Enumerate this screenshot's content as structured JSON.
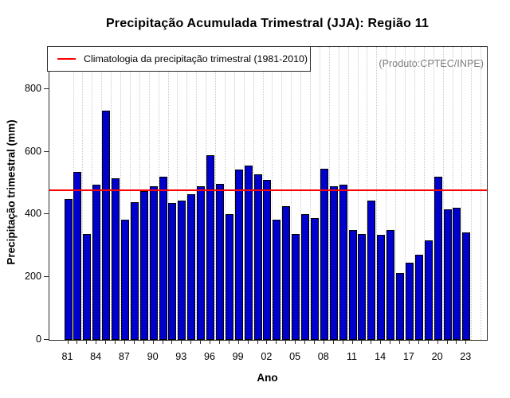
{
  "title": "Precipitação Acumulada Trimestral (JJA): Região 11",
  "annotation": "(Produto:CPTEC/INPE)",
  "legend": {
    "label": "Climatologia da precipitação trimestral (1981-2010)"
  },
  "xlabel": "Ano",
  "ylabel": "Precipitação trimestral (mm)",
  "chart_data": {
    "type": "bar",
    "x": [
      1981,
      1982,
      1983,
      1984,
      1985,
      1986,
      1987,
      1988,
      1989,
      1990,
      1991,
      1992,
      1993,
      1994,
      1995,
      1996,
      1997,
      1998,
      1999,
      2000,
      2001,
      2002,
      2003,
      2004,
      2005,
      2006,
      2007,
      2008,
      2009,
      2010,
      2011,
      2012,
      2013,
      2014,
      2015,
      2016,
      2017,
      2018,
      2019,
      2020,
      2021,
      2022,
      2023
    ],
    "values": [
      450,
      536,
      337,
      496,
      730,
      515,
      382,
      440,
      475,
      490,
      521,
      437,
      445,
      464,
      489,
      589,
      497,
      401,
      544,
      555,
      528,
      511,
      384,
      426,
      337,
      402,
      388,
      546,
      490,
      496,
      350,
      337,
      445,
      335,
      349,
      213,
      245,
      271,
      317,
      519,
      415,
      421,
      343
    ],
    "series_name": "Precipitação trimestral (mm)",
    "climatology_value": 477,
    "climatology_period": "1981-2010",
    "title": "Precipitação Acumulada Trimestral (JJA): Região 11",
    "xlabel": "Ano",
    "ylabel": "Precipitação trimestral (mm)",
    "yticks": [
      0,
      200,
      400,
      600,
      800
    ],
    "ylim": [
      0,
      935
    ],
    "xtick_labels": [
      "81",
      "84",
      "87",
      "90",
      "93",
      "96",
      "99",
      "02",
      "05",
      "08",
      "11",
      "14",
      "17",
      "20",
      "23"
    ],
    "xtick_step": 3,
    "grid": "vertical-dotted",
    "legend_position": "top-left",
    "colors": {
      "bar_fill": "#0000cd",
      "bar_border": "#000000",
      "climatology_line": "#ff0000",
      "grid": "#c9c9c9",
      "annotation_text": "#808080",
      "frame": "#2b2b2b",
      "background": "#ffffff"
    }
  }
}
